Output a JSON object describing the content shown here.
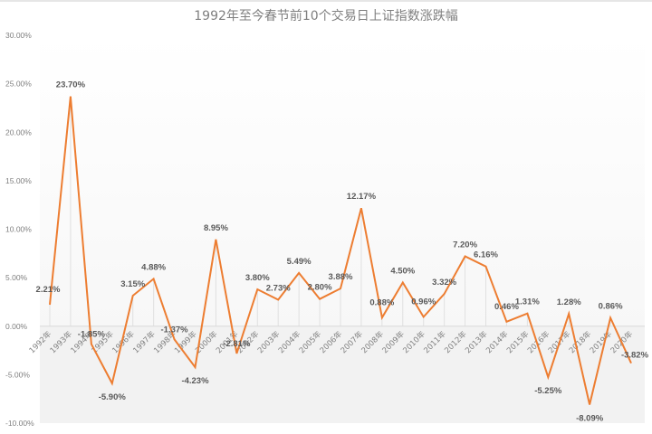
{
  "chart_data": {
    "type": "line",
    "title": "1992年至今春节前10个交易日上证指数涨跌幅",
    "xlabel": "",
    "ylabel": "",
    "ylim": [
      -10,
      30
    ],
    "yticks": [
      "30.00%",
      "25.00%",
      "20.00%",
      "15.00%",
      "10.00%",
      "5.00%",
      "0.00%",
      "-5.00%",
      "-10.00%"
    ],
    "grid": "vertical drop lines at each category",
    "legend": "none",
    "categories": [
      "1992年",
      "1993年",
      "1994年",
      "1995年",
      "1996年",
      "1997年",
      "1998年",
      "1999年",
      "2000年",
      "2001年",
      "2002年",
      "2003年",
      "2004年",
      "2005年",
      "2006年",
      "2007年",
      "2008年",
      "2009年",
      "2010年",
      "2011年",
      "2012年",
      "2013年",
      "2014年",
      "2015年",
      "2016年",
      "2017年",
      "2018年",
      "2019年",
      "2020年"
    ],
    "series": [
      {
        "name": "上证指数涨跌幅",
        "color": "#ed7d31",
        "values": [
          2.21,
          23.7,
          -1.85,
          -5.9,
          3.15,
          4.88,
          -1.37,
          -4.23,
          8.95,
          -2.81,
          3.8,
          2.73,
          5.49,
          2.8,
          3.88,
          12.17,
          0.88,
          4.5,
          0.96,
          3.32,
          7.2,
          6.16,
          0.46,
          1.31,
          -5.25,
          1.28,
          -8.09,
          0.86,
          -3.82
        ],
        "labels": [
          "2.21%",
          "23.70%",
          "-1.85%",
          "-5.90%",
          "3.15%",
          "4.88%",
          "-1.37%",
          "-4.23%",
          "8.95%",
          "-2.81%",
          "3.80%",
          "2.73%",
          "5.49%",
          "2.80%",
          "3.88%",
          "12.17%",
          "0.88%",
          "4.50%",
          "0.96%",
          "3.32%",
          "7.20%",
          "6.16%",
          "0.46%",
          "1.31%",
          "-5.25%",
          "1.28%",
          "-8.09%",
          "0.86%",
          "-3.82%"
        ]
      }
    ]
  },
  "colors": {
    "line": "#ed7d31",
    "title": "#7f7f7f",
    "tick": "#7f7f7f",
    "label": "#595959",
    "negative_bg": "#f2f2f2",
    "gridline": "#e0e0e0"
  }
}
